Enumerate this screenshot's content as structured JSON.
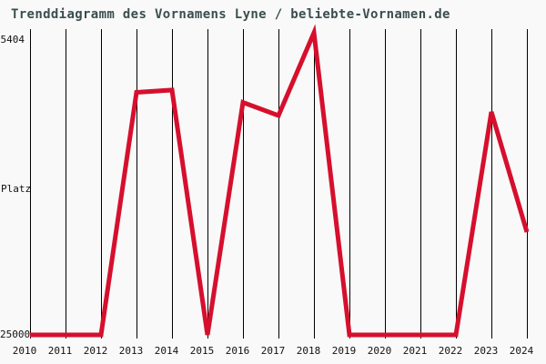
{
  "chart_data": {
    "type": "line",
    "title": "Trenddiagramm des Vornamens Lyne / beliebte-Vornamen.de",
    "x": [
      2010,
      2011,
      2012,
      2013,
      2014,
      2015,
      2016,
      2017,
      2018,
      2019,
      2020,
      2021,
      2022,
      2023,
      2024
    ],
    "values": [
      25000,
      25000,
      25000,
      9270,
      9120,
      25000,
      9920,
      10775,
      5404,
      25000,
      25000,
      25000,
      25000,
      10540,
      18330
    ],
    "series_name": "Platz (Rang des Vornamens Lyne)",
    "ylabel": "Platz",
    "y_axis": {
      "top_label": "5404",
      "bottom_label": "25000",
      "range": [
        5404,
        25000
      ],
      "inverted": true,
      "note": "lower rank number = more popular = plotted higher"
    },
    "xlabel": "",
    "grid": "vertical-only",
    "legend": "none",
    "colors": {
      "line": "#d60f2d",
      "title": "#3a4e4e",
      "axis_text": "#111111",
      "gridline": "#000000",
      "background": "#f9f9f9"
    }
  }
}
